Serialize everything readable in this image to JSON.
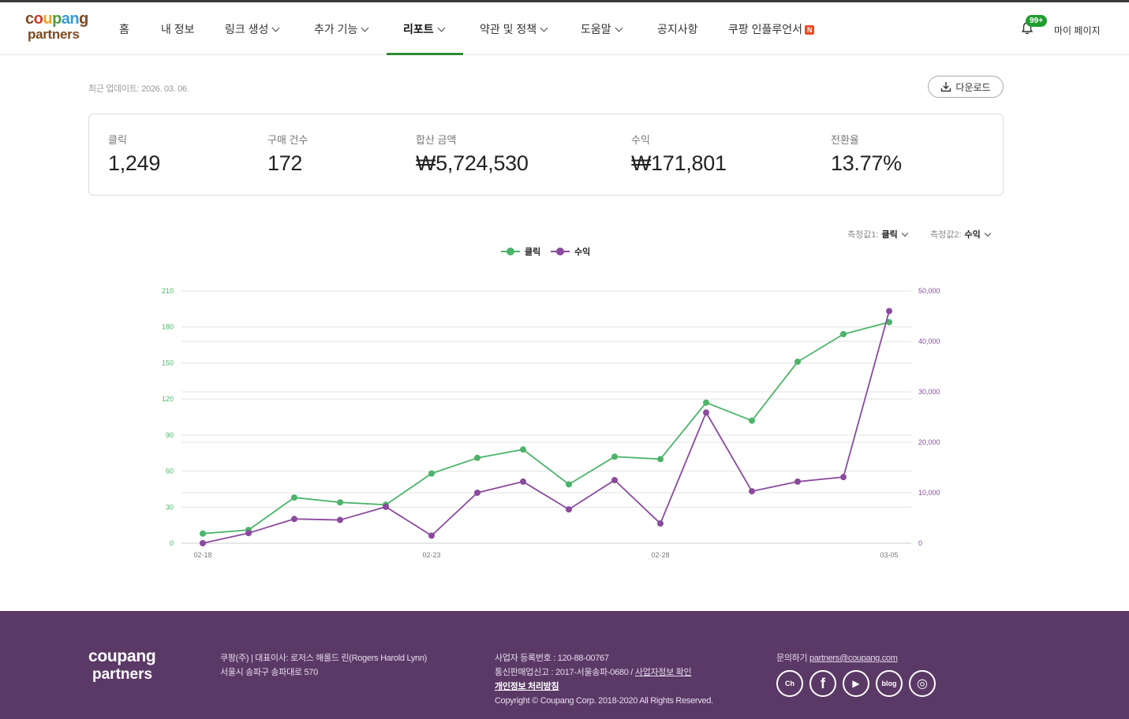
{
  "brand": {
    "logo_line1": "coupang",
    "logo_line2": "partners"
  },
  "nav": {
    "items": [
      {
        "label": "홈"
      },
      {
        "label": "내 정보"
      },
      {
        "label": "링크 생성"
      },
      {
        "label": "추가 기능"
      },
      {
        "label": "리포트"
      },
      {
        "label": "약관 및 정책"
      },
      {
        "label": "도움말"
      },
      {
        "label": "공지사항"
      },
      {
        "label": "쿠팡 인플루언서"
      }
    ],
    "influencer_badge": "N",
    "notification_count": "99+",
    "mypage": "마이 페이지"
  },
  "report": {
    "updated": "최근 업데이트: 2026. 03. 06.",
    "download_label": "다운로드"
  },
  "stats": [
    {
      "label": "클릭",
      "value": "1,249"
    },
    {
      "label": "구매 건수",
      "value": "172"
    },
    {
      "label": "합산 금액",
      "value": "₩5,724,530"
    },
    {
      "label": "수익",
      "value": "₩171,801"
    },
    {
      "label": "전환율",
      "value": "13.77%"
    }
  ],
  "metrics": {
    "m1_label": "측정값1:",
    "m1_value": "클릭",
    "m2_label": "측정값2:",
    "m2_value": "수익"
  },
  "colors": {
    "clicks": "#4cb46a",
    "revenue": "#8a4a9e",
    "active_nav": "#2e8b32",
    "footer_bg": "#5b3966"
  },
  "chart_data": {
    "type": "line",
    "x": [
      "02-18",
      "02-19",
      "02-20",
      "02-21",
      "02-22",
      "02-23",
      "02-24",
      "02-25",
      "02-26",
      "02-27",
      "02-28",
      "03-01",
      "03-02",
      "03-03",
      "03-04",
      "03-05"
    ],
    "x_tick_labels": [
      "02-18",
      "02-23",
      "02-28",
      "03-05"
    ],
    "series": [
      {
        "name": "클릭",
        "axis": "left",
        "values": [
          8,
          11,
          38,
          34,
          32,
          58,
          71,
          78,
          49,
          72,
          70,
          117,
          102,
          151,
          174,
          184
        ]
      },
      {
        "name": "수익",
        "axis": "right",
        "values": [
          0,
          2000,
          4800,
          4600,
          7200,
          1500,
          10000,
          12200,
          6700,
          12500,
          3900,
          25900,
          10300,
          12200,
          13100,
          46000
        ]
      }
    ],
    "y_left": {
      "ticks": [
        0,
        30,
        60,
        90,
        120,
        150,
        180,
        210
      ],
      "ylim": [
        0,
        210
      ]
    },
    "y_right": {
      "ticks": [
        "0",
        "10,000",
        "20,000",
        "30,000",
        "40,000",
        "50,000"
      ],
      "tick_values": [
        0,
        10000,
        20000,
        30000,
        40000,
        50000
      ],
      "ylim": [
        0,
        50000
      ]
    },
    "legend": "top-center",
    "grid": true
  },
  "footer": {
    "logo_line1": "coupang",
    "logo_line2": "partners",
    "company": "쿠팡(주) | 대표이사: 로저스 해롤드 린(Rogers Harold Lynn)",
    "address": "서울시 송파구 송파대로 570",
    "biz_no": "사업자 등록번호 : 120-88-00767",
    "ecommerce_no": "통신판매업신고 : 2017-서울송파-0680 / ",
    "biz_info_link": "사업자정보 확인",
    "privacy": "개인정보 처리방침",
    "copyright": "Copyright © Coupang Corp. 2018-2020 All Rights Reserved.",
    "contact_label": "문의하기 ",
    "contact_email": "partners@coupang.com",
    "socials": [
      {
        "icon": "kakao-channel-icon",
        "text": "Ch"
      },
      {
        "icon": "facebook-icon",
        "text": "f"
      },
      {
        "icon": "youtube-icon",
        "text": "▶"
      },
      {
        "icon": "blog-icon",
        "text": "blog"
      },
      {
        "icon": "instagram-icon",
        "text": "◎"
      }
    ]
  }
}
